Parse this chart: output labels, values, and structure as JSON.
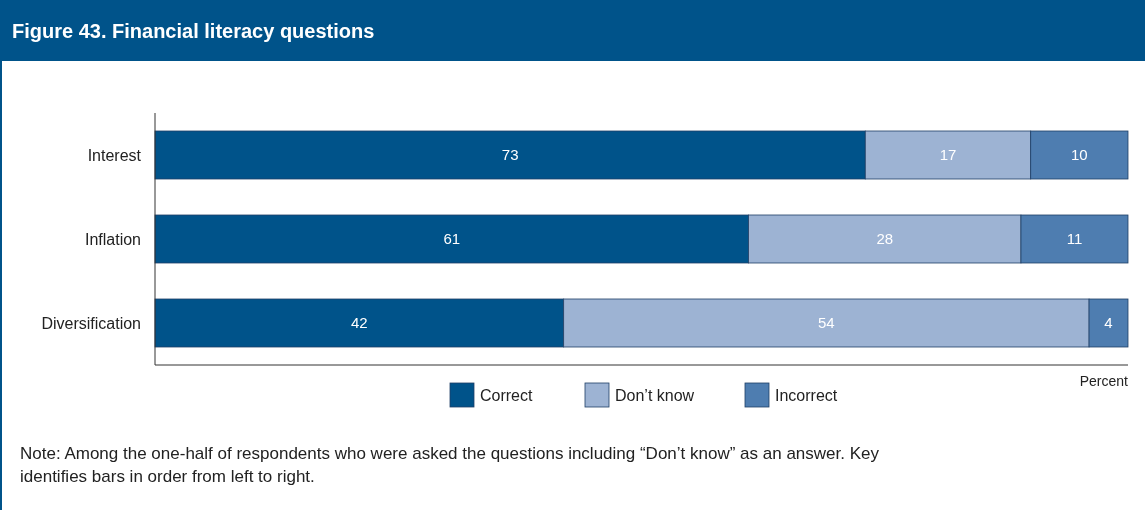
{
  "chart_data": {
    "type": "bar",
    "orientation": "horizontal",
    "stacked": true,
    "title": "Figure 43. Financial literacy questions",
    "xlabel": "Percent",
    "categories": [
      "Interest",
      "Inflation",
      "Diversification"
    ],
    "series": [
      {
        "name": "Correct",
        "color": "#00538a",
        "values": [
          73,
          61,
          42
        ]
      },
      {
        "name": "Don’t know",
        "color": "#9db3d3",
        "values": [
          17,
          28,
          54
        ]
      },
      {
        "name": "Incorrect",
        "color": "#4e7db0",
        "values": [
          10,
          11,
          4
        ]
      }
    ],
    "xlim": [
      0,
      100
    ],
    "data_labels": true,
    "legend": "bottom",
    "grid": false,
    "annotations": [
      "Note: Among the one-half of respondents who were asked the questions including “Don’t know” as an answer. Key identifies bars in order from left to right."
    ]
  }
}
